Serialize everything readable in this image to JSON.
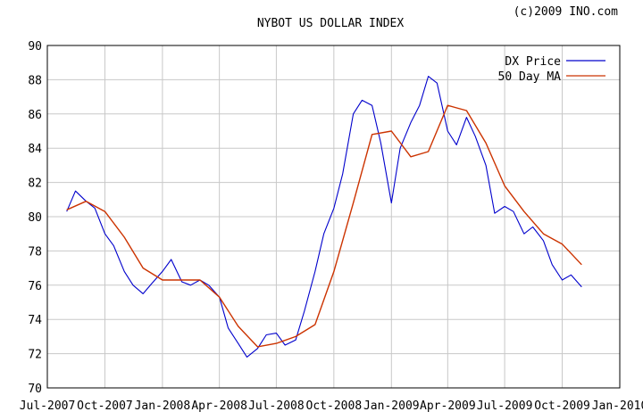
{
  "copyright": "(c)2009 INO.com",
  "chart_data": {
    "type": "line",
    "title": "NYBOT US DOLLAR INDEX",
    "xlabel": "",
    "ylabel": "",
    "grid": true,
    "legend_position": "top-right",
    "x_ticks": [
      "Jul-2007",
      "Oct-2007",
      "Jan-2008",
      "Apr-2008",
      "Jul-2008",
      "Oct-2008",
      "Jan-2009",
      "Apr-2009",
      "Jul-2009",
      "Oct-2009",
      "Jan-2010"
    ],
    "y_ticks": [
      70,
      72,
      74,
      76,
      78,
      80,
      82,
      84,
      86,
      88,
      90
    ],
    "xlim": [
      "Jul-2007",
      "Jan-2010"
    ],
    "ylim": [
      70,
      90
    ],
    "series": [
      {
        "name": "DX Price",
        "color": "#0000cc",
        "x": [
          "2007-08-01",
          "2007-08-15",
          "2007-09-01",
          "2007-09-15",
          "2007-10-01",
          "2007-10-15",
          "2007-11-01",
          "2007-11-15",
          "2007-12-01",
          "2007-12-15",
          "2008-01-01",
          "2008-01-15",
          "2008-02-01",
          "2008-02-15",
          "2008-03-01",
          "2008-03-15",
          "2008-04-01",
          "2008-04-15",
          "2008-05-01",
          "2008-05-15",
          "2008-06-01",
          "2008-06-15",
          "2008-07-01",
          "2008-07-15",
          "2008-08-01",
          "2008-08-15",
          "2008-09-01",
          "2008-09-15",
          "2008-10-01",
          "2008-10-15",
          "2008-11-01",
          "2008-11-15",
          "2008-12-01",
          "2008-12-15",
          "2009-01-01",
          "2009-01-15",
          "2009-02-01",
          "2009-02-15",
          "2009-03-01",
          "2009-03-15",
          "2009-04-01",
          "2009-04-15",
          "2009-05-01",
          "2009-05-15",
          "2009-06-01",
          "2009-06-15",
          "2009-07-01",
          "2009-07-15",
          "2009-08-01",
          "2009-08-15",
          "2009-09-01",
          "2009-09-15",
          "2009-10-01",
          "2009-10-15",
          "2009-11-01"
        ],
        "y": [
          80.3,
          81.5,
          80.9,
          80.5,
          79.0,
          78.3,
          76.8,
          76.0,
          75.5,
          76.1,
          76.8,
          77.5,
          76.2,
          76.0,
          76.3,
          76.0,
          75.3,
          73.5,
          72.6,
          71.8,
          72.3,
          73.1,
          73.2,
          72.5,
          72.8,
          74.5,
          76.8,
          79.0,
          80.5,
          82.5,
          86.0,
          86.8,
          86.5,
          84.3,
          80.8,
          84.0,
          85.5,
          86.5,
          88.2,
          87.8,
          85.0,
          84.2,
          85.8,
          84.7,
          83.0,
          80.2,
          80.6,
          80.3,
          79.0,
          79.4,
          78.6,
          77.2,
          76.3,
          76.6,
          75.9
        ]
      },
      {
        "name": "50 Day MA",
        "color": "#cc3300",
        "x": [
          "2007-08-01",
          "2007-09-01",
          "2007-10-01",
          "2007-11-01",
          "2007-12-01",
          "2008-01-01",
          "2008-02-01",
          "2008-03-01",
          "2008-04-01",
          "2008-05-01",
          "2008-06-01",
          "2008-07-01",
          "2008-08-01",
          "2008-09-01",
          "2008-10-01",
          "2008-11-01",
          "2008-12-01",
          "2009-01-01",
          "2009-02-01",
          "2009-03-01",
          "2009-04-01",
          "2009-05-01",
          "2009-06-01",
          "2009-07-01",
          "2009-08-01",
          "2009-09-01",
          "2009-10-01",
          "2009-11-01"
        ],
        "y": [
          80.4,
          80.9,
          80.3,
          78.8,
          77.0,
          76.3,
          76.3,
          76.3,
          75.3,
          73.6,
          72.4,
          72.6,
          73.0,
          73.7,
          76.8,
          80.8,
          84.8,
          85.0,
          83.5,
          83.8,
          86.5,
          86.2,
          84.3,
          81.8,
          80.3,
          79.0,
          78.4,
          77.2
        ]
      }
    ]
  }
}
